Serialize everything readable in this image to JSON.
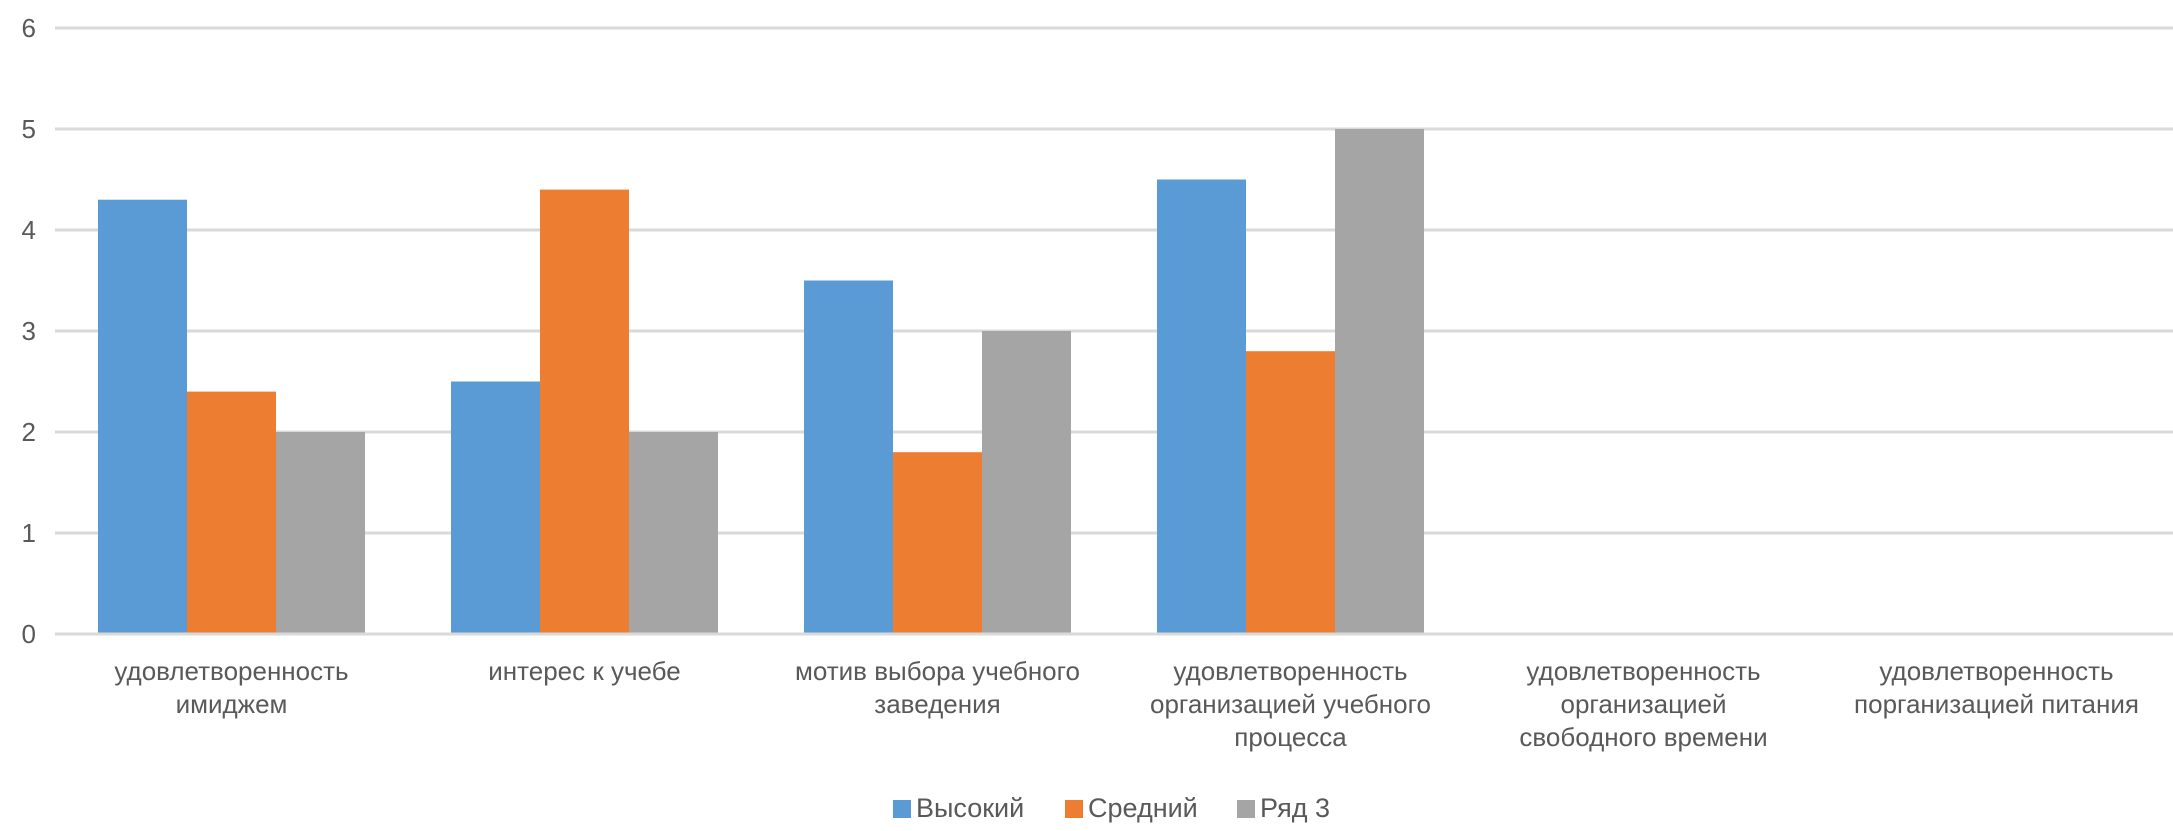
{
  "chart_data": {
    "type": "bar",
    "categories": [
      [
        "удовлетворенность",
        "имиджем"
      ],
      [
        "интерес к учебе"
      ],
      [
        "мотив выбора учебного",
        "заведения"
      ],
      [
        "удовлетворенность",
        "организацией учебного",
        "процесса"
      ],
      [
        "удовлетворенность",
        "организацией",
        "свободного времени"
      ],
      [
        "удовлетворенность",
        "порганизацией питания"
      ]
    ],
    "series": [
      {
        "name": "Высокий",
        "color": "#5B9BD5",
        "values": [
          4.3,
          2.5,
          3.5,
          4.5,
          null,
          null
        ]
      },
      {
        "name": "Средний",
        "color": "#ED7D31",
        "values": [
          2.4,
          4.4,
          1.8,
          2.8,
          null,
          null
        ]
      },
      {
        "name": "Ряд 3",
        "color": "#A5A5A5",
        "values": [
          2,
          2,
          3,
          5,
          null,
          null
        ]
      }
    ],
    "ylim": [
      0,
      6
    ],
    "yticks": [
      "0",
      "1",
      "2",
      "3",
      "4",
      "5",
      "6"
    ],
    "grid": true,
    "legend": "bottom",
    "title": "",
    "xlabel": "",
    "ylabel": ""
  }
}
